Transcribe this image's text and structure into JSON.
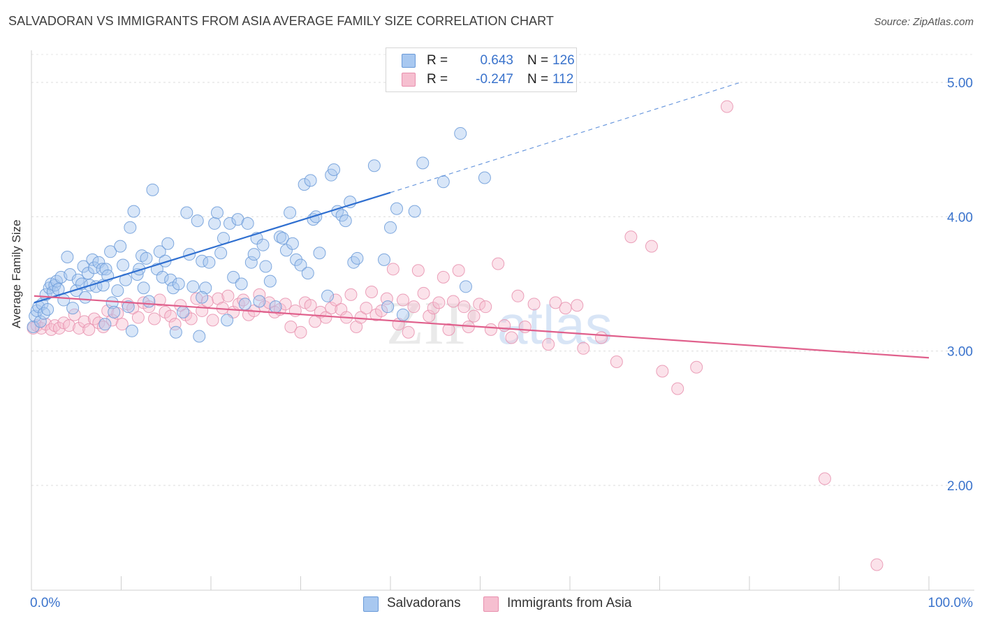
{
  "title": "SALVADORAN VS IMMIGRANTS FROM ASIA AVERAGE FAMILY SIZE CORRELATION CHART",
  "source": "Source: ZipAtlas.com",
  "watermark": {
    "part1": "ZIP",
    "part2": "atlas"
  },
  "colors": {
    "blue_fill": "#a8c8f0",
    "blue_stroke": "#6a9ad8",
    "blue_line": "#2f6fd0",
    "pink_fill": "#f6bfd0",
    "pink_stroke": "#e890ae",
    "pink_line": "#e0608c",
    "tick_label": "#3a73cc"
  },
  "stats": [
    {
      "r_label": "R =",
      "r_value": "0.643",
      "n_label": "N =",
      "n_value": "126",
      "color": "#a8c8f0"
    },
    {
      "r_label": "R =",
      "r_value": "-0.247",
      "n_label": "N =",
      "n_value": "112",
      "color": "#f6bfd0"
    }
  ],
  "legend": [
    {
      "label": "Salvadorans",
      "color": "#a8c8f0"
    },
    {
      "label": "Immigrants from Asia",
      "color": "#f6bfd0"
    }
  ],
  "chart_data": {
    "type": "scatter",
    "xlabel": "",
    "ylabel": "Average Family Size",
    "xlim": [
      0,
      100
    ],
    "ylim": [
      1.22,
      5.2
    ],
    "x_tick_labels": [
      "0.0%",
      "100.0%"
    ],
    "y_ticks": [
      2.0,
      3.0,
      4.0,
      5.0
    ],
    "y_tick_labels": [
      "2.00",
      "3.00",
      "4.00",
      "5.00"
    ],
    "grid": "horizontal dashed",
    "legend_position": "bottom-center",
    "series": [
      {
        "name": "Salvadorans",
        "trendline": {
          "x": [
            0.3,
            40,
            79
          ],
          "y": [
            3.36,
            4.18,
            5.0
          ],
          "solid_until_x": 40
        },
        "points": [
          [
            0.2,
            3.18
          ],
          [
            0.4,
            3.26
          ],
          [
            0.6,
            3.3
          ],
          [
            0.8,
            3.33
          ],
          [
            1.0,
            3.22
          ],
          [
            1.2,
            3.35
          ],
          [
            1.4,
            3.28
          ],
          [
            1.6,
            3.42
          ],
          [
            1.8,
            3.31
          ],
          [
            2.0,
            3.47
          ],
          [
            2.2,
            3.5
          ],
          [
            2.4,
            3.44
          ],
          [
            2.6,
            3.49
          ],
          [
            2.8,
            3.52
          ],
          [
            3.0,
            3.46
          ],
          [
            3.3,
            3.55
          ],
          [
            3.6,
            3.38
          ],
          [
            4.0,
            3.7
          ],
          [
            4.3,
            3.57
          ],
          [
            4.6,
            3.32
          ],
          [
            5.0,
            3.45
          ],
          [
            5.2,
            3.53
          ],
          [
            5.6,
            3.5
          ],
          [
            5.8,
            3.63
          ],
          [
            6.0,
            3.4
          ],
          [
            6.3,
            3.58
          ],
          [
            6.5,
            3.49
          ],
          [
            6.8,
            3.68
          ],
          [
            7.0,
            3.62
          ],
          [
            7.2,
            3.48
          ],
          [
            7.5,
            3.66
          ],
          [
            7.9,
            3.61
          ],
          [
            8.0,
            3.49
          ],
          [
            8.3,
            3.61
          ],
          [
            8.5,
            3.56
          ],
          [
            8.8,
            3.74
          ],
          [
            8.2,
            3.2
          ],
          [
            9.0,
            3.36
          ],
          [
            9.2,
            3.29
          ],
          [
            9.6,
            3.45
          ],
          [
            9.9,
            3.78
          ],
          [
            10.2,
            3.64
          ],
          [
            10.5,
            3.53
          ],
          [
            10.8,
            3.33
          ],
          [
            11.0,
            3.92
          ],
          [
            11.2,
            3.15
          ],
          [
            11.4,
            4.04
          ],
          [
            11.8,
            3.57
          ],
          [
            12.0,
            3.61
          ],
          [
            12.3,
            3.71
          ],
          [
            12.5,
            3.47
          ],
          [
            12.8,
            3.69
          ],
          [
            13.1,
            3.37
          ],
          [
            13.5,
            4.2
          ],
          [
            14.0,
            3.61
          ],
          [
            14.3,
            3.74
          ],
          [
            14.6,
            3.55
          ],
          [
            14.9,
            3.67
          ],
          [
            15.2,
            3.8
          ],
          [
            15.5,
            3.53
          ],
          [
            15.8,
            3.47
          ],
          [
            16.1,
            3.14
          ],
          [
            16.4,
            3.5
          ],
          [
            16.9,
            3.29
          ],
          [
            17.3,
            4.03
          ],
          [
            17.6,
            3.72
          ],
          [
            18.0,
            3.48
          ],
          [
            18.5,
            3.97
          ],
          [
            18.7,
            3.11
          ],
          [
            19.0,
            3.67
          ],
          [
            19.4,
            3.47
          ],
          [
            19.8,
            3.66
          ],
          [
            20.4,
            3.95
          ],
          [
            20.7,
            4.03
          ],
          [
            21.1,
            3.73
          ],
          [
            21.4,
            3.84
          ],
          [
            21.8,
            3.23
          ],
          [
            22.1,
            3.95
          ],
          [
            22.5,
            3.55
          ],
          [
            23.0,
            3.98
          ],
          [
            23.4,
            3.5
          ],
          [
            23.8,
            3.35
          ],
          [
            24.1,
            3.95
          ],
          [
            24.5,
            3.66
          ],
          [
            24.8,
            3.72
          ],
          [
            25.1,
            3.84
          ],
          [
            25.4,
            3.37
          ],
          [
            25.8,
            3.79
          ],
          [
            26.1,
            3.63
          ],
          [
            26.6,
            3.52
          ],
          [
            27.2,
            3.33
          ],
          [
            27.7,
            3.85
          ],
          [
            28.0,
            3.84
          ],
          [
            28.4,
            3.75
          ],
          [
            28.8,
            4.03
          ],
          [
            29.1,
            3.8
          ],
          [
            29.5,
            3.68
          ],
          [
            30.0,
            3.64
          ],
          [
            30.4,
            4.24
          ],
          [
            30.8,
            3.58
          ],
          [
            31.1,
            4.27
          ],
          [
            31.4,
            3.98
          ],
          [
            31.7,
            4.0
          ],
          [
            32.1,
            3.73
          ],
          [
            33.0,
            3.41
          ],
          [
            33.4,
            4.31
          ],
          [
            33.7,
            4.35
          ],
          [
            34.1,
            4.04
          ],
          [
            34.6,
            4.01
          ],
          [
            35.0,
            3.97
          ],
          [
            35.5,
            4.11
          ],
          [
            35.9,
            3.66
          ],
          [
            36.3,
            3.69
          ],
          [
            38.2,
            4.38
          ],
          [
            39.3,
            3.68
          ],
          [
            40.0,
            3.92
          ],
          [
            40.7,
            4.06
          ],
          [
            41.4,
            3.27
          ],
          [
            42.7,
            4.04
          ],
          [
            43.6,
            4.4
          ],
          [
            45.9,
            4.26
          ],
          [
            47.8,
            4.62
          ],
          [
            50.5,
            4.29
          ],
          [
            48.4,
            3.48
          ],
          [
            39.7,
            3.33
          ],
          [
            19.0,
            3.4
          ]
        ]
      },
      {
        "name": "Immigrants from Asia",
        "trendline": {
          "x": [
            0.3,
            100
          ],
          "y": [
            3.41,
            2.95
          ]
        },
        "points": [
          [
            0.2,
            3.17
          ],
          [
            0.6,
            3.19
          ],
          [
            1.1,
            3.17
          ],
          [
            1.6,
            3.2
          ],
          [
            2.2,
            3.16
          ],
          [
            2.6,
            3.19
          ],
          [
            3.1,
            3.17
          ],
          [
            3.6,
            3.21
          ],
          [
            4.2,
            3.19
          ],
          [
            4.8,
            3.27
          ],
          [
            5.3,
            3.17
          ],
          [
            5.9,
            3.22
          ],
          [
            6.4,
            3.16
          ],
          [
            7.0,
            3.24
          ],
          [
            7.5,
            3.21
          ],
          [
            8.0,
            3.18
          ],
          [
            8.5,
            3.3
          ],
          [
            9.0,
            3.23
          ],
          [
            9.6,
            3.28
          ],
          [
            10.1,
            3.2
          ],
          [
            10.7,
            3.35
          ],
          [
            11.3,
            3.32
          ],
          [
            11.9,
            3.25
          ],
          [
            12.5,
            3.36
          ],
          [
            13.1,
            3.33
          ],
          [
            13.7,
            3.24
          ],
          [
            14.3,
            3.38
          ],
          [
            14.9,
            3.29
          ],
          [
            15.5,
            3.26
          ],
          [
            16.0,
            3.2
          ],
          [
            16.6,
            3.34
          ],
          [
            17.2,
            3.27
          ],
          [
            17.8,
            3.24
          ],
          [
            18.4,
            3.39
          ],
          [
            19.0,
            3.3
          ],
          [
            19.6,
            3.37
          ],
          [
            20.2,
            3.23
          ],
          [
            20.8,
            3.39
          ],
          [
            21.3,
            3.32
          ],
          [
            21.9,
            3.41
          ],
          [
            22.5,
            3.29
          ],
          [
            23.1,
            3.35
          ],
          [
            23.6,
            3.38
          ],
          [
            24.2,
            3.27
          ],
          [
            24.8,
            3.3
          ],
          [
            25.4,
            3.42
          ],
          [
            26.0,
            3.33
          ],
          [
            26.5,
            3.36
          ],
          [
            27.1,
            3.29
          ],
          [
            27.7,
            3.31
          ],
          [
            28.3,
            3.35
          ],
          [
            28.9,
            3.18
          ],
          [
            29.4,
            3.3
          ],
          [
            30.0,
            3.14
          ],
          [
            30.5,
            3.36
          ],
          [
            31.1,
            3.34
          ],
          [
            31.6,
            3.22
          ],
          [
            32.2,
            3.29
          ],
          [
            32.8,
            3.25
          ],
          [
            33.4,
            3.32
          ],
          [
            33.9,
            3.38
          ],
          [
            34.5,
            3.31
          ],
          [
            35.1,
            3.25
          ],
          [
            35.6,
            3.42
          ],
          [
            36.2,
            3.18
          ],
          [
            36.7,
            3.25
          ],
          [
            37.3,
            3.32
          ],
          [
            37.9,
            3.44
          ],
          [
            38.4,
            3.27
          ],
          [
            39.0,
            3.3
          ],
          [
            39.6,
            3.39
          ],
          [
            40.3,
            3.61
          ],
          [
            40.9,
            3.2
          ],
          [
            41.4,
            3.38
          ],
          [
            42.0,
            3.14
          ],
          [
            42.6,
            3.33
          ],
          [
            43.1,
            3.6
          ],
          [
            43.7,
            3.43
          ],
          [
            44.3,
            3.26
          ],
          [
            44.8,
            3.32
          ],
          [
            45.4,
            3.36
          ],
          [
            45.9,
            3.55
          ],
          [
            46.5,
            3.16
          ],
          [
            47.0,
            3.37
          ],
          [
            47.6,
            3.6
          ],
          [
            48.2,
            3.33
          ],
          [
            48.7,
            3.18
          ],
          [
            49.3,
            3.26
          ],
          [
            49.9,
            3.35
          ],
          [
            50.6,
            3.33
          ],
          [
            51.2,
            3.16
          ],
          [
            52.0,
            3.65
          ],
          [
            52.7,
            3.19
          ],
          [
            53.5,
            3.1
          ],
          [
            54.2,
            3.41
          ],
          [
            55.0,
            3.18
          ],
          [
            56.0,
            3.35
          ],
          [
            57.6,
            3.05
          ],
          [
            58.4,
            3.36
          ],
          [
            59.5,
            3.32
          ],
          [
            60.8,
            3.34
          ],
          [
            61.5,
            3.02
          ],
          [
            63.5,
            3.1
          ],
          [
            65.2,
            2.92
          ],
          [
            66.8,
            3.85
          ],
          [
            69.1,
            3.78
          ],
          [
            70.3,
            2.85
          ],
          [
            72.0,
            2.72
          ],
          [
            74.1,
            2.88
          ],
          [
            77.5,
            4.82
          ],
          [
            94.2,
            1.41
          ],
          [
            88.4,
            2.05
          ]
        ]
      }
    ]
  }
}
